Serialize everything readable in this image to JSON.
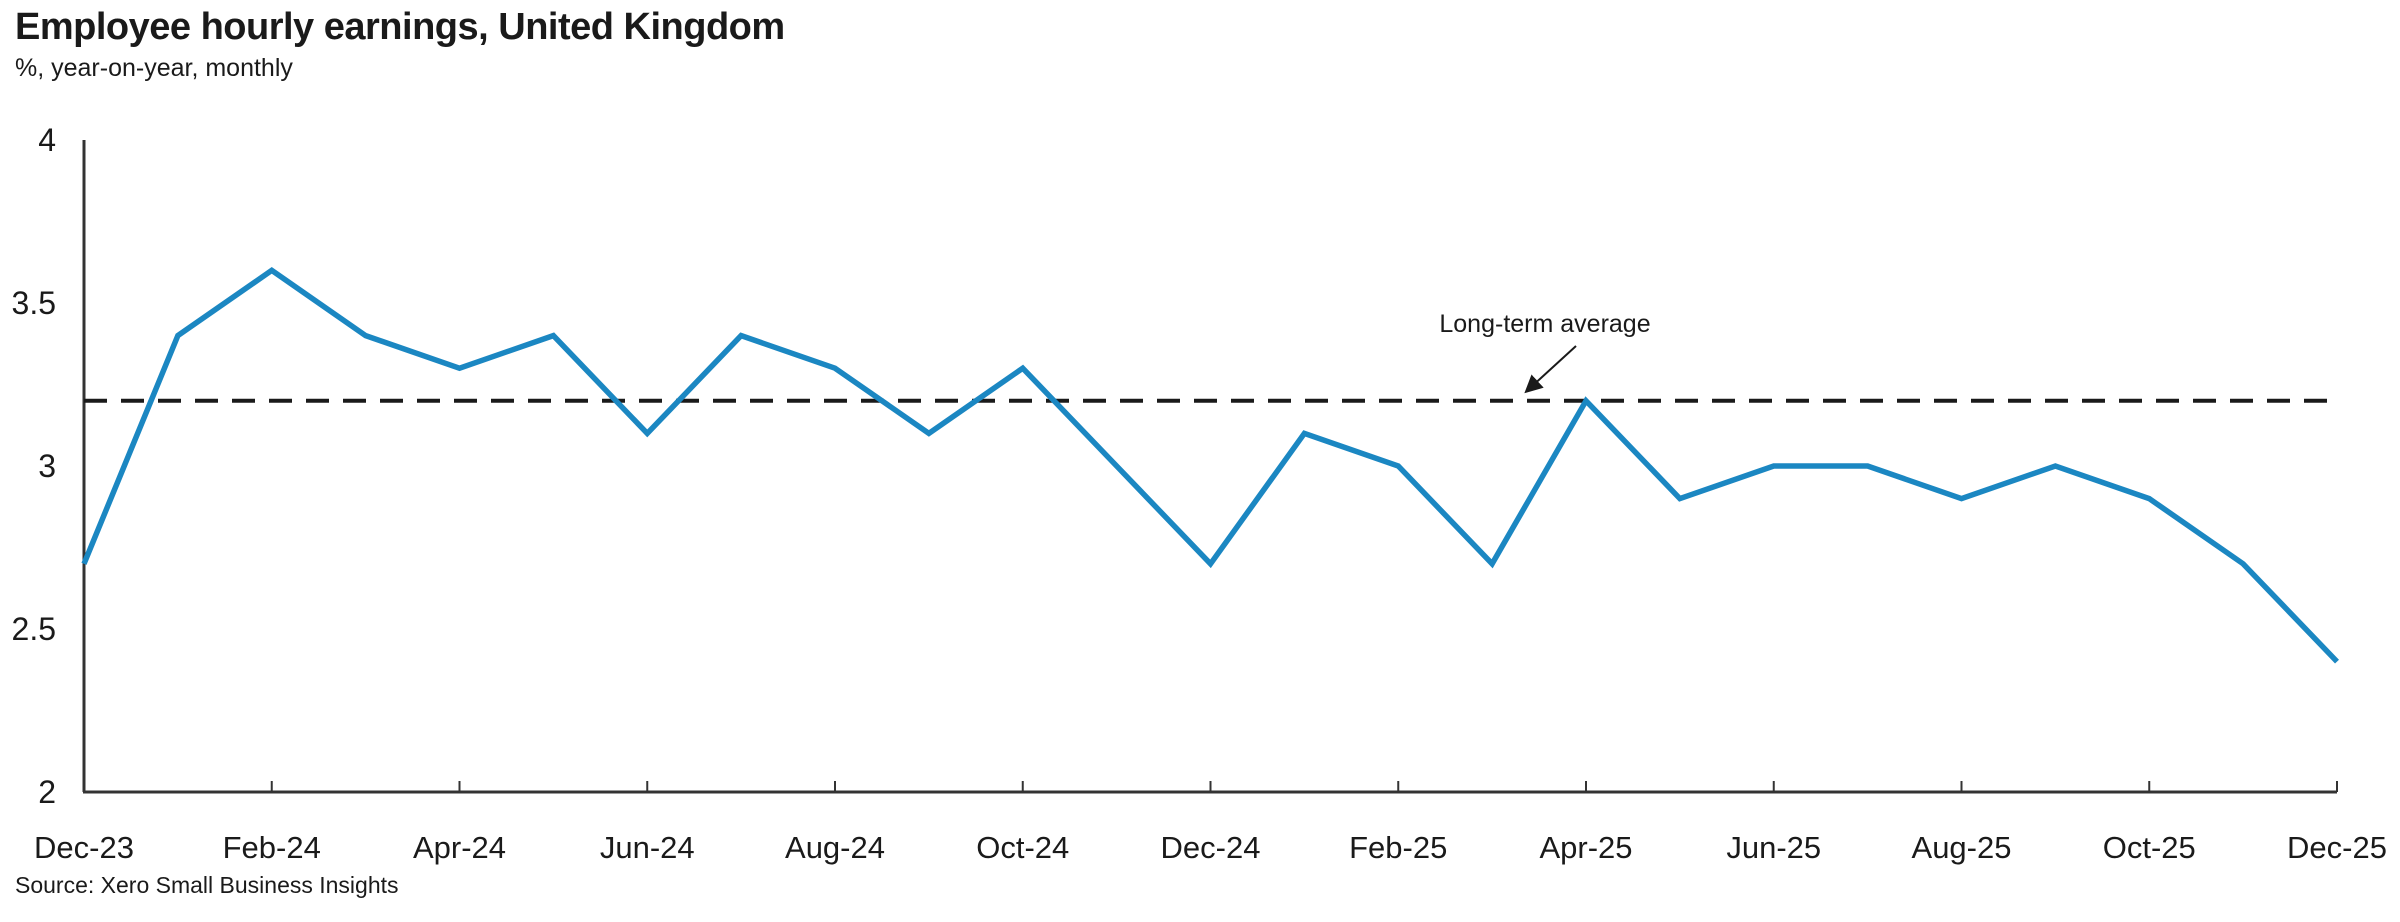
{
  "page": {
    "title": "Employee hourly earnings, United Kingdom",
    "subtitle": "%, year-on-year, monthly",
    "source": "Source: Xero Small Business Insights"
  },
  "chart_data": {
    "type": "line",
    "title": "Employee hourly earnings, United Kingdom",
    "subtitle": "%, year-on-year, monthly",
    "source": "Source: Xero Small Business Insights",
    "categories": [
      "Dec-23",
      "Jan-24",
      "Feb-24",
      "Mar-24",
      "Apr-24",
      "May-24",
      "Jun-24",
      "Jul-24",
      "Aug-24",
      "Sep-24",
      "Oct-24",
      "Nov-24",
      "Dec-24",
      "Jan-25",
      "Feb-25",
      "Mar-25",
      "Apr-25",
      "May-25",
      "Jun-25",
      "Jul-25",
      "Aug-25",
      "Sep-25",
      "Oct-25",
      "Nov-25",
      "Dec-25"
    ],
    "series": [
      {
        "name": "Employee hourly earnings, year-on-year %",
        "values": [
          2.7,
          3.4,
          3.6,
          3.4,
          3.3,
          3.4,
          3.1,
          3.4,
          3.3,
          3.1,
          3.3,
          3.0,
          2.7,
          3.1,
          3.0,
          2.7,
          3.2,
          2.9,
          3.0,
          3.0,
          2.9,
          3.0,
          2.9,
          2.7,
          2.4
        ]
      }
    ],
    "reference_line": {
      "label": "Long-term average",
      "value": 3.2
    },
    "ylim": [
      2,
      4
    ],
    "y_ticks": [
      "4",
      "3.5",
      "3",
      "2.5",
      "2"
    ],
    "y_tick_values": [
      4,
      3.5,
      3,
      2.5,
      2
    ],
    "x_tick_labels": [
      "Dec-23",
      "Feb-24",
      "Apr-24",
      "Jun-24",
      "Aug-24",
      "Oct-24",
      "Dec-24",
      "Feb-25",
      "Apr-25",
      "Jun-25",
      "Aug-25",
      "Oct-25",
      "Dec-25"
    ],
    "x_tick_every": 2,
    "grid": "off",
    "legend": "none",
    "colors": {
      "line": "#1B87C2",
      "reference": "#1a1a1a",
      "axis": "#333333",
      "text": "#1a1a1a"
    }
  }
}
